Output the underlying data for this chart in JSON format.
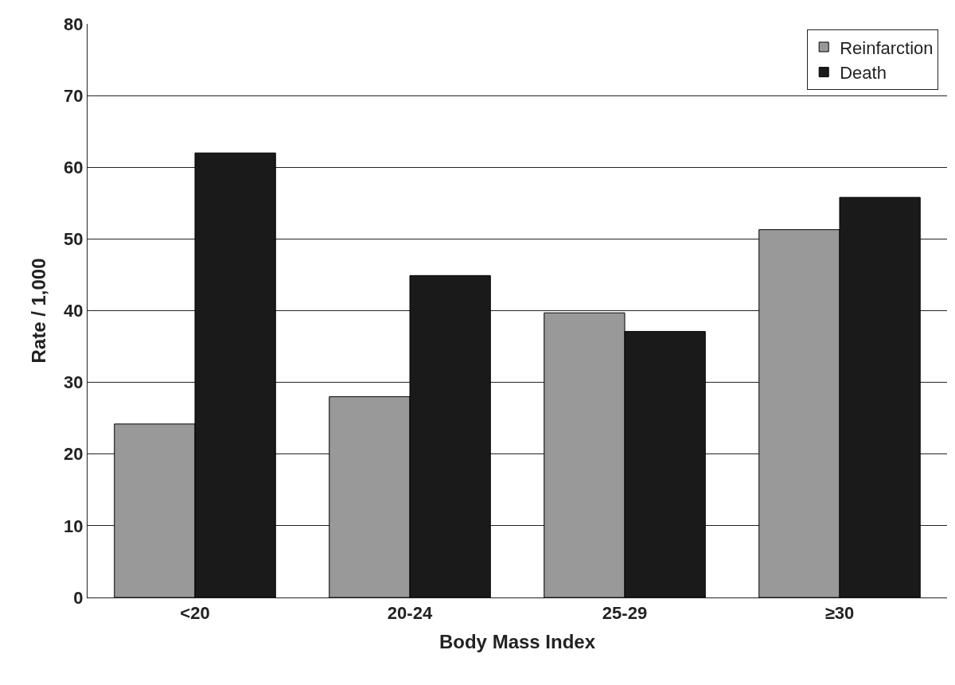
{
  "chart_data": {
    "type": "bar",
    "xlabel": "Body Mass Index",
    "ylabel": "Rate / 1,000",
    "categories": [
      "<20",
      "20-24",
      "25-29",
      "≥30"
    ],
    "series": [
      {
        "name": "Reinfarction",
        "color": "#999999",
        "values": [
          24.2,
          28.0,
          39.7,
          51.3
        ]
      },
      {
        "name": "Death",
        "color": "#1a1a1a",
        "values": [
          62.0,
          44.9,
          37.1,
          55.8
        ]
      }
    ],
    "ylim": [
      0,
      80
    ],
    "yticks": [
      0,
      10,
      20,
      30,
      40,
      50,
      60,
      70,
      80
    ],
    "grid": "y",
    "legend": "top right"
  }
}
